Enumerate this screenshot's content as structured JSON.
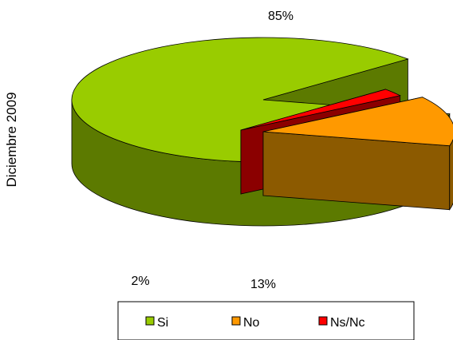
{
  "chart_data": {
    "type": "pie",
    "style": "3d-exploded",
    "side_label": "Diciembre 2009",
    "categories": [
      "Si",
      "No",
      "Ns/Nc"
    ],
    "values": [
      85,
      13,
      2
    ],
    "data_labels": [
      "85%",
      "13%",
      "2%"
    ],
    "colors": {
      "Si": {
        "top": "#99CC00",
        "side": "#5C7A00"
      },
      "No": {
        "top": "#FF9900",
        "side": "#8C5A00"
      },
      "Ns/Nc": {
        "top": "#FF0000",
        "side": "#8B0000"
      }
    },
    "legend": {
      "placement": "bottom",
      "entries": [
        "Si",
        "No",
        "Ns/Nc"
      ]
    }
  }
}
